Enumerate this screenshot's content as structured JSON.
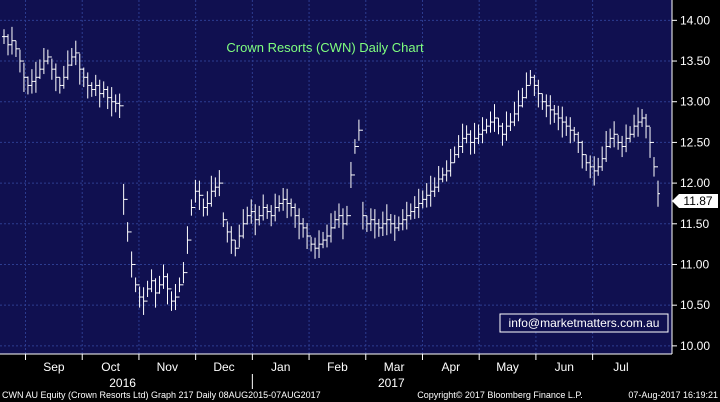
{
  "chart_data": {
    "type": "ohlc",
    "title": "Crown Resorts (CWN) Daily Chart",
    "ylim": [
      9.9,
      14.25
    ],
    "yticks": [
      "14.00",
      "13.50",
      "13.00",
      "12.50",
      "12.00",
      "11.50",
      "11.00",
      "10.50",
      "10.00"
    ],
    "months": [
      "Sep",
      "Oct",
      "Nov",
      "Dec",
      "Jan",
      "Feb",
      "Mar",
      "Apr",
      "May",
      "Jun",
      "Jul"
    ],
    "years": [
      "2016",
      "2017"
    ],
    "last_price": "11.87",
    "series": [
      {
        "name": "CWN",
        "values": [
          13.8,
          13.7,
          13.75,
          13.65,
          13.5,
          13.3,
          13.2,
          13.25,
          13.3,
          13.4,
          13.5,
          13.55,
          13.4,
          13.3,
          13.2,
          13.3,
          13.45,
          13.55,
          13.6,
          13.4,
          13.3,
          13.2,
          13.15,
          13.2,
          13.1,
          13.15,
          13.05,
          13.0,
          12.98,
          12.95,
          11.8,
          11.4,
          11.0,
          10.75,
          10.6,
          10.55,
          10.7,
          10.8,
          10.65,
          10.75,
          10.85,
          10.7,
          10.55,
          10.6,
          10.75,
          10.9,
          11.3,
          11.7,
          11.9,
          11.85,
          11.7,
          11.75,
          11.9,
          11.95,
          12.0,
          11.55,
          11.4,
          11.3,
          11.2,
          11.35,
          11.5,
          11.6,
          11.65,
          11.55,
          11.6,
          11.7,
          11.65,
          11.6,
          11.7,
          11.75,
          11.8,
          11.75,
          11.7,
          11.6,
          11.5,
          11.45,
          11.35,
          11.25,
          11.2,
          11.25,
          11.3,
          11.35,
          11.45,
          11.55,
          11.6,
          11.5,
          11.6,
          12.1,
          12.45,
          12.65,
          11.6,
          11.5,
          11.55,
          11.5,
          11.45,
          11.5,
          11.55,
          11.5,
          11.45,
          11.5,
          11.55,
          11.6,
          11.65,
          11.7,
          11.75,
          11.8,
          11.85,
          11.9,
          11.95,
          12.05,
          12.1,
          12.15,
          12.25,
          12.35,
          12.45,
          12.55,
          12.6,
          12.5,
          12.55,
          12.6,
          12.65,
          12.7,
          12.75,
          12.8,
          12.7,
          12.6,
          12.7,
          12.75,
          12.85,
          12.95,
          13.05,
          13.2,
          13.3,
          13.2,
          13.1,
          13.0,
          12.95,
          12.9,
          12.85,
          12.8,
          12.75,
          12.7,
          12.65,
          12.6,
          12.5,
          12.35,
          12.25,
          12.2,
          12.15,
          12.2,
          12.3,
          12.45,
          12.55,
          12.6,
          12.5,
          12.45,
          12.55,
          12.6,
          12.7,
          12.75,
          12.8,
          12.7,
          12.5,
          12.2,
          11.87
        ]
      }
    ]
  },
  "footer": {
    "left": "CWN AU Equity (Crown Resorts Ltd) Graph 217  Daily 08AUG2015-07AUG2017",
    "center": "Copyright© 2017 Bloomberg Finance L.P.",
    "right": "07-Aug-2017 16:19:21"
  },
  "watermark": "info@marketmatters.com.au",
  "colors": {
    "plot_bg": "#101050",
    "grid": "#2a3a8a",
    "bars": "#ffffff",
    "title": "#7fff7f",
    "last_bg": "#ffffff"
  }
}
